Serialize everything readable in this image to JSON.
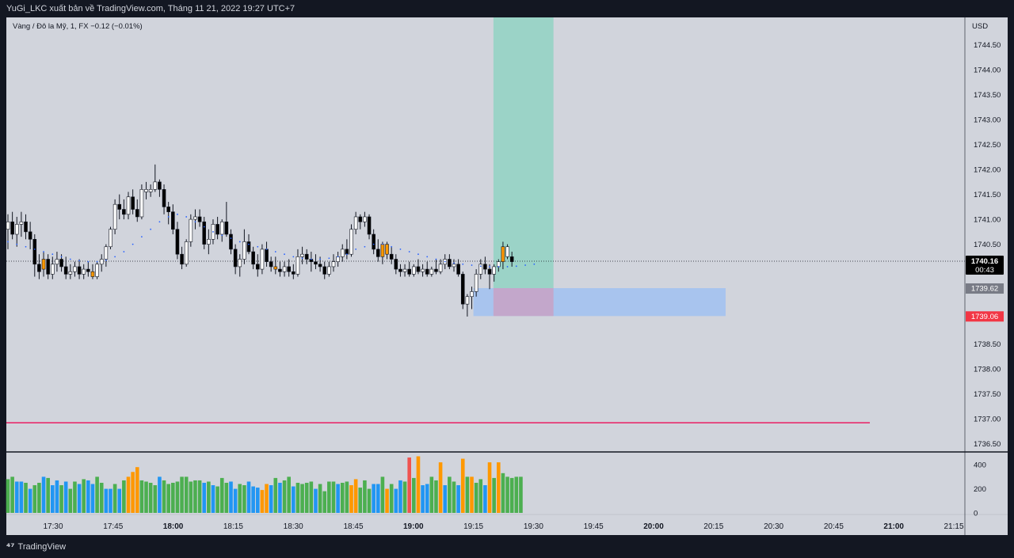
{
  "header": {
    "publish_line": "YuGi_LKC xuất bản về TradingView.com, Tháng 11 21, 2022 19:27 UTC+7"
  },
  "footer": {
    "brand": "TradingView",
    "logo_icon": "tradingview-logo-icon"
  },
  "colors": {
    "bull": "#ffffff",
    "bear": "#000000",
    "orange": "#ff9800",
    "volume_green": "#4caf50",
    "volume_blue": "#2196f3",
    "volume_orange": "#ff9800",
    "volume_red": "#f05350",
    "vwap_dots": "#2962ff",
    "target_zone": "#9bd3c7",
    "entry_zone": "#a8c4ee",
    "red_line": "#e91e63",
    "price_label_grey": "#787b86",
    "price_label_red": "#f23645"
  },
  "chart_data": {
    "type": "candlestick",
    "legend": "Vàng / Đô la Mỹ, 1, FX  −0.12 (−0.01%)",
    "currency": "USD",
    "y_ticks": [
      "1744.50",
      "1744.00",
      "1743.50",
      "1743.00",
      "1742.50",
      "1742.00",
      "1741.50",
      "1741.00",
      "1740.50",
      "1738.50",
      "1738.00",
      "1737.50",
      "1737.00",
      "1736.50"
    ],
    "x_ticks": [
      "17:30",
      "17:45",
      "18:00",
      "18:15",
      "18:30",
      "18:45",
      "19:00",
      "19:15",
      "19:30",
      "19:45",
      "20:00",
      "20:15",
      "20:30",
      "20:45",
      "21:00",
      "21:15"
    ],
    "bold_x_ticks": [
      "18:00",
      "19:00",
      "20:00",
      "21:00"
    ],
    "ylim": [
      1736.35,
      1745.05
    ],
    "volume_ticks": [
      "400",
      "200",
      "0"
    ],
    "volume_max": 480,
    "last_price": {
      "price": "1740.16",
      "countdown": "00:43"
    },
    "entry_label": "1739.62",
    "stop_label": "1739.06",
    "horizontal_line": 1736.92,
    "position_zones": {
      "target": {
        "from_time": "19:20",
        "to_time": "19:35",
        "price_top": 1745.05,
        "price_bottom": 1739.62
      },
      "entry_box": {
        "from_time": "19:15",
        "to_time": "20:18",
        "price_top": 1739.62,
        "price_bottom": 1739.06
      },
      "stop": {
        "from_time": "19:20",
        "to_time": "19:35",
        "price_top": 1739.62,
        "price_bottom": 1739.06
      }
    },
    "candles": [
      [
        1740.8,
        1741.1,
        1740.4,
        1740.95
      ],
      [
        1740.95,
        1741.15,
        1740.6,
        1740.7
      ],
      [
        1740.7,
        1741.05,
        1740.45,
        1740.9
      ],
      [
        1740.9,
        1741.15,
        1740.65,
        1740.95
      ],
      [
        1740.95,
        1741.1,
        1740.6,
        1740.75
      ],
      [
        1740.75,
        1740.95,
        1740.4,
        1740.6
      ],
      [
        1740.6,
        1740.7,
        1739.85,
        1740.1
      ],
      [
        1740.1,
        1740.3,
        1739.8,
        1739.95
      ],
      [
        1740.0,
        1740.35,
        1739.85,
        1740.2
      ],
      [
        1740.2,
        1740.3,
        1739.8,
        1739.9
      ],
      [
        1739.9,
        1740.25,
        1739.8,
        1740.1
      ],
      [
        1740.1,
        1740.35,
        1739.95,
        1740.2
      ],
      [
        1740.2,
        1740.3,
        1739.95,
        1740.05
      ],
      [
        1740.05,
        1740.25,
        1739.8,
        1739.9
      ],
      [
        1739.9,
        1740.1,
        1739.8,
        1739.95
      ],
      [
        1739.95,
        1740.15,
        1739.85,
        1740.05
      ],
      [
        1740.05,
        1740.2,
        1739.8,
        1739.9
      ],
      [
        1739.9,
        1740.1,
        1739.8,
        1740.0
      ],
      [
        1740.0,
        1740.15,
        1739.85,
        1739.95
      ],
      [
        1739.95,
        1740.1,
        1739.8,
        1739.85
      ],
      [
        1739.85,
        1740.15,
        1739.8,
        1740.1
      ],
      [
        1740.1,
        1740.3,
        1739.95,
        1740.2
      ],
      [
        1740.2,
        1740.5,
        1740.05,
        1740.45
      ],
      [
        1740.45,
        1740.85,
        1740.4,
        1740.8
      ],
      [
        1740.8,
        1741.4,
        1740.7,
        1741.3
      ],
      [
        1741.3,
        1741.5,
        1741.0,
        1741.2
      ],
      [
        1741.2,
        1741.4,
        1741.0,
        1741.1
      ],
      [
        1741.1,
        1741.55,
        1741.0,
        1741.45
      ],
      [
        1741.45,
        1741.6,
        1741.1,
        1741.2
      ],
      [
        1741.2,
        1741.4,
        1740.95,
        1741.05
      ],
      [
        1741.05,
        1741.7,
        1741.0,
        1741.6
      ],
      [
        1741.6,
        1741.75,
        1741.4,
        1741.55
      ],
      [
        1741.55,
        1741.7,
        1741.45,
        1741.6
      ],
      [
        1741.6,
        1742.1,
        1741.55,
        1741.75
      ],
      [
        1741.75,
        1741.8,
        1741.45,
        1741.6
      ],
      [
        1741.6,
        1741.7,
        1741.1,
        1741.25
      ],
      [
        1741.25,
        1741.35,
        1740.9,
        1741.15
      ],
      [
        1741.15,
        1741.3,
        1740.7,
        1740.8
      ],
      [
        1740.8,
        1740.95,
        1740.2,
        1740.3
      ],
      [
        1740.3,
        1740.45,
        1740.0,
        1740.1
      ],
      [
        1740.1,
        1740.6,
        1740.05,
        1740.55
      ],
      [
        1740.55,
        1741.1,
        1740.45,
        1741.0
      ],
      [
        1741.0,
        1741.2,
        1740.8,
        1741.05
      ],
      [
        1741.05,
        1741.2,
        1740.85,
        1740.95
      ],
      [
        1740.95,
        1741.05,
        1740.4,
        1740.5
      ],
      [
        1740.5,
        1740.8,
        1740.3,
        1740.6
      ],
      [
        1740.6,
        1741.0,
        1740.5,
        1740.9
      ],
      [
        1740.9,
        1741.05,
        1740.6,
        1740.7
      ],
      [
        1740.7,
        1741.0,
        1740.55,
        1740.95
      ],
      [
        1740.95,
        1741.35,
        1740.65,
        1740.7
      ],
      [
        1740.7,
        1740.8,
        1740.3,
        1740.4
      ],
      [
        1740.4,
        1740.5,
        1739.9,
        1740.05
      ],
      [
        1740.05,
        1740.3,
        1739.85,
        1740.2
      ],
      [
        1740.2,
        1740.8,
        1740.1,
        1740.55
      ],
      [
        1740.55,
        1740.7,
        1740.3,
        1740.35
      ],
      [
        1740.35,
        1740.45,
        1740.0,
        1740.1
      ],
      [
        1740.1,
        1740.3,
        1739.85,
        1740.0
      ],
      [
        1740.0,
        1740.5,
        1739.9,
        1740.4
      ],
      [
        1740.4,
        1740.55,
        1740.05,
        1740.15
      ],
      [
        1740.15,
        1740.25,
        1739.95,
        1740.05
      ],
      [
        1740.05,
        1740.25,
        1739.9,
        1740.0
      ],
      [
        1740.0,
        1740.15,
        1739.85,
        1739.95
      ],
      [
        1739.95,
        1740.15,
        1739.85,
        1740.05
      ],
      [
        1740.05,
        1740.2,
        1739.85,
        1739.95
      ],
      [
        1739.95,
        1740.1,
        1739.8,
        1739.9
      ],
      [
        1739.9,
        1740.4,
        1739.85,
        1740.25
      ],
      [
        1740.25,
        1740.45,
        1740.1,
        1740.3
      ],
      [
        1740.3,
        1740.4,
        1740.1,
        1740.2
      ],
      [
        1740.2,
        1740.35,
        1739.95,
        1740.15
      ],
      [
        1740.15,
        1740.3,
        1740.0,
        1740.1
      ],
      [
        1740.1,
        1740.25,
        1739.95,
        1740.05
      ],
      [
        1740.05,
        1740.15,
        1739.8,
        1739.9
      ],
      [
        1739.9,
        1740.15,
        1739.85,
        1740.05
      ],
      [
        1740.05,
        1740.3,
        1739.95,
        1740.15
      ],
      [
        1740.15,
        1740.35,
        1740.05,
        1740.25
      ],
      [
        1740.25,
        1740.5,
        1740.15,
        1740.4
      ],
      [
        1740.4,
        1740.6,
        1740.2,
        1740.3
      ],
      [
        1740.3,
        1740.9,
        1740.25,
        1740.8
      ],
      [
        1740.8,
        1741.15,
        1740.7,
        1741.05
      ],
      [
        1741.05,
        1741.1,
        1740.8,
        1740.95
      ],
      [
        1740.95,
        1741.15,
        1740.85,
        1741.05
      ],
      [
        1741.05,
        1741.1,
        1740.6,
        1740.7
      ],
      [
        1740.7,
        1740.8,
        1740.3,
        1740.4
      ],
      [
        1740.4,
        1740.6,
        1740.15,
        1740.25
      ],
      [
        1740.25,
        1740.55,
        1740.1,
        1740.5
      ],
      [
        1740.5,
        1740.55,
        1740.2,
        1740.3
      ],
      [
        1740.3,
        1740.45,
        1740.1,
        1740.2
      ],
      [
        1740.2,
        1740.3,
        1739.9,
        1740.0
      ],
      [
        1740.0,
        1740.1,
        1739.85,
        1739.95
      ],
      [
        1739.95,
        1740.1,
        1739.85,
        1740.0
      ],
      [
        1740.0,
        1740.15,
        1739.85,
        1739.9
      ],
      [
        1739.9,
        1740.1,
        1739.85,
        1740.05
      ],
      [
        1740.05,
        1740.2,
        1739.9,
        1739.95
      ],
      [
        1739.95,
        1740.1,
        1739.85,
        1740.0
      ],
      [
        1740.0,
        1740.15,
        1739.85,
        1739.9
      ],
      [
        1739.9,
        1740.05,
        1739.85,
        1740.0
      ],
      [
        1740.0,
        1740.2,
        1739.9,
        1739.95
      ],
      [
        1739.95,
        1740.2,
        1739.9,
        1740.1
      ],
      [
        1740.1,
        1740.3,
        1740.0,
        1740.2
      ],
      [
        1740.2,
        1740.3,
        1740.0,
        1740.05
      ],
      [
        1740.05,
        1740.2,
        1739.95,
        1740.1
      ],
      [
        1740.1,
        1740.2,
        1739.85,
        1739.9
      ],
      [
        1739.9,
        1739.95,
        1739.2,
        1739.3
      ],
      [
        1739.3,
        1739.5,
        1739.05,
        1739.45
      ],
      [
        1739.45,
        1739.65,
        1739.2,
        1739.55
      ],
      [
        1739.55,
        1740.0,
        1739.45,
        1739.9
      ],
      [
        1739.9,
        1740.2,
        1739.8,
        1740.1
      ],
      [
        1740.1,
        1740.25,
        1739.9,
        1740.0
      ],
      [
        1740.0,
        1740.1,
        1739.6,
        1739.9
      ],
      [
        1739.9,
        1740.1,
        1739.75,
        1740.05
      ],
      [
        1740.05,
        1740.2,
        1739.95,
        1740.15
      ],
      [
        1740.15,
        1740.55,
        1740.0,
        1740.45
      ],
      [
        1740.45,
        1740.5,
        1740.2,
        1740.25
      ],
      [
        1740.25,
        1740.35,
        1740.05,
        1740.15
      ]
    ],
    "candle_colors": [
      "w",
      "b",
      "w",
      "w",
      "b",
      "b",
      "b",
      "b",
      "o",
      "b",
      "w",
      "w",
      "b",
      "b",
      "w",
      "w",
      "b",
      "w",
      "b",
      "o",
      "w",
      "w",
      "w",
      "w",
      "w",
      "b",
      "b",
      "w",
      "b",
      "b",
      "w",
      "w",
      "w",
      "w",
      "b",
      "b",
      "b",
      "b",
      "b",
      "b",
      "w",
      "w",
      "w",
      "b",
      "b",
      "w",
      "w",
      "b",
      "w",
      "b",
      "b",
      "b",
      "w",
      "w",
      "b",
      "b",
      "b",
      "w",
      "b",
      "b",
      "o",
      "b",
      "w",
      "b",
      "b",
      "w",
      "w",
      "b",
      "b",
      "b",
      "b",
      "b",
      "w",
      "w",
      "w",
      "w",
      "b",
      "w",
      "w",
      "b",
      "w",
      "b",
      "b",
      "b",
      "o",
      "o",
      "b",
      "b",
      "b",
      "w",
      "b",
      "w",
      "b",
      "w",
      "b",
      "w",
      "b",
      "w",
      "w",
      "b",
      "w",
      "b",
      "b",
      "w",
      "w",
      "w",
      "w",
      "b",
      "b",
      "w",
      "w",
      "o",
      "w",
      "b"
    ],
    "volumes": [
      280,
      300,
      260,
      260,
      250,
      200,
      230,
      250,
      300,
      290,
      230,
      270,
      230,
      260,
      200,
      260,
      240,
      280,
      270,
      240,
      300,
      250,
      200,
      200,
      240,
      200,
      270,
      300,
      340,
      380,
      270,
      260,
      250,
      230,
      300,
      270,
      240,
      250,
      260,
      300,
      300,
      260,
      270,
      270,
      250,
      260,
      230,
      220,
      290,
      250,
      260,
      200,
      240,
      230,
      260,
      220,
      210,
      190,
      240,
      230,
      290,
      250,
      270,
      300,
      220,
      250,
      240,
      250,
      260,
      200,
      240,
      180,
      260,
      260,
      240,
      250,
      260,
      230,
      280,
      210,
      270,
      200,
      240,
      240,
      300,
      200,
      240,
      200,
      270,
      260,
      460,
      290,
      470,
      230,
      240,
      300,
      270,
      420,
      230,
      300,
      260,
      230,
      450,
      300,
      300,
      250,
      280,
      230,
      420,
      290,
      420,
      330,
      300,
      290,
      300,
      300
    ],
    "volume_colors": [
      "g",
      "g",
      "b",
      "b",
      "g",
      "b",
      "g",
      "g",
      "b",
      "g",
      "b",
      "b",
      "g",
      "b",
      "g",
      "g",
      "b",
      "g",
      "b",
      "b",
      "g",
      "g",
      "b",
      "b",
      "g",
      "b",
      "g",
      "o",
      "o",
      "o",
      "g",
      "g",
      "g",
      "g",
      "b",
      "g",
      "g",
      "g",
      "g",
      "g",
      "g",
      "g",
      "g",
      "g",
      "b",
      "g",
      "b",
      "g",
      "g",
      "g",
      "b",
      "b",
      "g",
      "g",
      "b",
      "b",
      "b",
      "o",
      "o",
      "b",
      "g",
      "b",
      "g",
      "g",
      "b",
      "g",
      "g",
      "g",
      "g",
      "b",
      "g",
      "g",
      "g",
      "g",
      "b",
      "g",
      "g",
      "o",
      "o",
      "g",
      "g",
      "g",
      "b",
      "b",
      "g",
      "o",
      "g",
      "b",
      "b",
      "g",
      "r",
      "g",
      "o",
      "b",
      "b",
      "g",
      "g",
      "o",
      "b",
      "g",
      "g",
      "b",
      "o",
      "g",
      "o",
      "g",
      "g",
      "b",
      "o",
      "g",
      "o",
      "g",
      "g",
      "g",
      "g",
      "g"
    ],
    "vwap": [
      1740.55,
      1740.5,
      1740.45,
      1740.4,
      1740.35,
      1740.3,
      1740.25,
      1740.2,
      1740.17,
      1740.15,
      1740.15,
      1740.18,
      1740.25,
      1740.35,
      1740.5,
      1740.65,
      1740.8,
      1740.95,
      1741.05,
      1741.1,
      1741.05,
      1740.95,
      1740.85,
      1740.75,
      1740.68,
      1740.62,
      1740.55,
      1740.5,
      1740.45,
      1740.4,
      1740.35,
      1740.3,
      1740.25,
      1740.22,
      1740.2,
      1740.2,
      1740.22,
      1740.25,
      1740.3,
      1740.4,
      1740.45,
      1740.5,
      1740.5,
      1740.45,
      1740.4,
      1740.35,
      1740.3,
      1740.25,
      1740.2,
      1740.15,
      1740.12,
      1740.1,
      1740.08,
      1740.06,
      1740.05,
      1740.05,
      1740.05,
      1740.06,
      1740.08,
      1740.1
    ]
  }
}
